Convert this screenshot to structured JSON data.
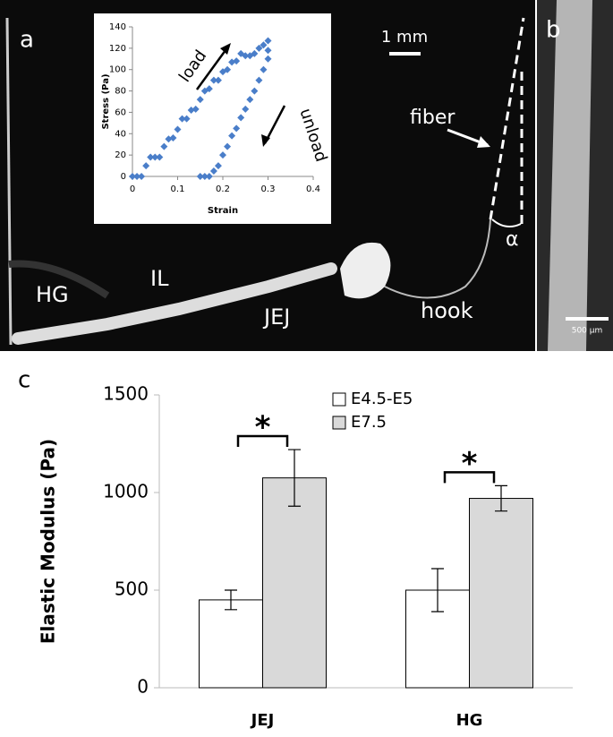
{
  "figure": {
    "panel_a": {
      "label": "a",
      "scale_bar": "1 mm",
      "fiber": "fiber",
      "angle": "α",
      "hg": "HG",
      "il": "IL",
      "jej": "JEJ",
      "hook": "hook"
    },
    "panel_b": {
      "label": "b",
      "scale_bar": "500 µm"
    },
    "panel_c": {
      "label": "c"
    }
  },
  "chart_data": [
    {
      "type": "scatter",
      "xlabel": "Strain",
      "ylabel": "Stress (Pa)",
      "annotations": [
        "load",
        "unload"
      ],
      "color": "#4a7ec9",
      "x": [
        0,
        0.01,
        0.02,
        0.03,
        0.04,
        0.05,
        0.06,
        0.07,
        0.08,
        0.09,
        0.1,
        0.11,
        0.12,
        0.13,
        0.14,
        0.15,
        0.16,
        0.17,
        0.18,
        0.19,
        0.2,
        0.21,
        0.22,
        0.23,
        0.24,
        0.25,
        0.26,
        0.27,
        0.28,
        0.29,
        0.3,
        0.3,
        0.3,
        0.29,
        0.28,
        0.27,
        0.26,
        0.25,
        0.24,
        0.23,
        0.22,
        0.21,
        0.2,
        0.19,
        0.18,
        0.17,
        0.16,
        0.15
      ],
      "values": [
        0,
        0,
        0,
        10,
        18,
        18,
        18,
        28,
        35,
        36,
        44,
        54,
        54,
        62,
        63,
        72,
        80,
        82,
        90,
        90,
        98,
        100,
        107,
        108,
        115,
        113,
        113,
        115,
        120,
        123,
        127,
        118,
        110,
        100,
        90,
        80,
        72,
        63,
        55,
        45,
        38,
        28,
        20,
        10,
        5,
        0,
        0,
        0
      ],
      "xlim": [
        0,
        0.4
      ],
      "xticks": [
        0,
        0.1,
        0.2,
        0.3,
        0.4
      ],
      "ylim": [
        0,
        140
      ],
      "yticks": [
        0,
        20,
        40,
        60,
        80,
        100,
        120,
        140
      ]
    },
    {
      "type": "bar",
      "ylabel": "Elastic Modulus (Pa)",
      "categories": [
        "JEJ",
        "HG"
      ],
      "series": [
        {
          "name": "E4.5-E5",
          "color": "#ffffff",
          "values": [
            450,
            500
          ],
          "errors": [
            50,
            110
          ]
        },
        {
          "name": "E7.5",
          "color": "#d9d9d9",
          "values": [
            1075,
            970
          ],
          "errors": [
            145,
            65
          ]
        }
      ],
      "annotations": [
        "*",
        "*"
      ],
      "ylim": [
        0,
        1500
      ],
      "yticks": [
        0,
        500,
        1000,
        1500
      ]
    }
  ]
}
